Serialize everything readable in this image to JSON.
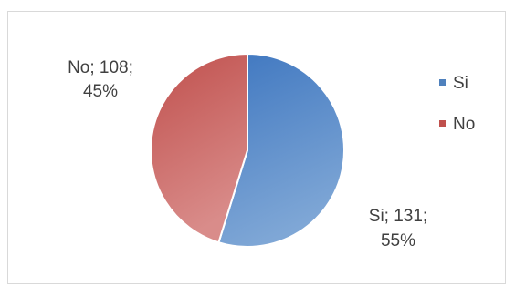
{
  "chart_data": {
    "type": "pie",
    "categories": [
      "Si",
      "No"
    ],
    "values": [
      131,
      108
    ],
    "percents": [
      "55%",
      "45%"
    ],
    "colors": [
      "#4f81bd",
      "#c0504d"
    ],
    "data_labels": [
      {
        "category": "Si",
        "line1": "Si; 131;",
        "line2": "55%"
      },
      {
        "category": "No",
        "line1": "No; 108;",
        "line2": "45%"
      }
    ],
    "legend": {
      "placement": "right",
      "items": [
        {
          "label": "Si",
          "color": "#4f81bd"
        },
        {
          "label": "No",
          "color": "#c0504d"
        }
      ]
    }
  }
}
